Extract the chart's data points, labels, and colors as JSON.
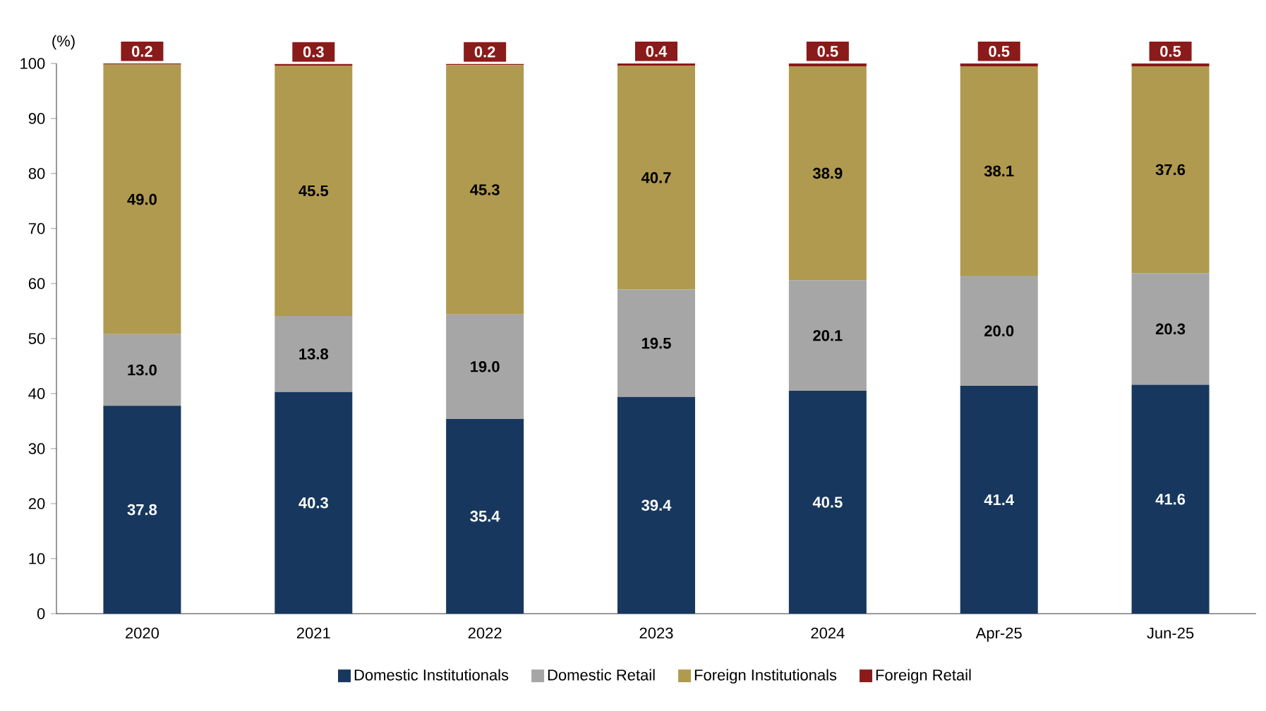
{
  "chart_data": {
    "type": "bar",
    "stacked": true,
    "ylabel": "(%)",
    "categories": [
      "2020",
      "2021",
      "2022",
      "2023",
      "2024",
      "Apr-25",
      "Jun-25"
    ],
    "series": [
      {
        "name": "Domestic Institutionals",
        "color": "#17375e",
        "values": [
          37.8,
          40.3,
          35.4,
          39.4,
          40.5,
          41.4,
          41.6
        ],
        "value_labels": [
          "37.8",
          "40.3",
          "35.4",
          "39.4",
          "40.5",
          "41.4",
          "41.6"
        ]
      },
      {
        "name": "Domestic Retail",
        "color": "#a6a6a6",
        "values": [
          13.0,
          13.8,
          19.0,
          19.5,
          20.1,
          20.0,
          20.3
        ],
        "value_labels": [
          "13.0",
          "13.8",
          "19.0",
          "19.5",
          "20.1",
          "20.0",
          "20.3"
        ]
      },
      {
        "name": "Foreign Institutionals",
        "color": "#b09a4f",
        "values": [
          49.0,
          45.5,
          45.3,
          40.7,
          38.9,
          38.1,
          37.6
        ],
        "value_labels": [
          "49.0",
          "45.5",
          "45.3",
          "40.7",
          "38.9",
          "38.1",
          "37.6"
        ]
      },
      {
        "name": "Foreign Retail",
        "color": "#8b1a1a",
        "values": [
          0.2,
          0.3,
          0.2,
          0.4,
          0.5,
          0.5,
          0.5
        ],
        "value_labels": [
          "0.2",
          "0.3",
          "0.2",
          "0.4",
          "0.5",
          "0.5",
          "0.5"
        ]
      }
    ],
    "ylim": [
      0,
      100
    ],
    "yticks": [
      0,
      10,
      20,
      30,
      40,
      50,
      60,
      70,
      80,
      90,
      100
    ],
    "grid": false,
    "legend": "bottom"
  }
}
